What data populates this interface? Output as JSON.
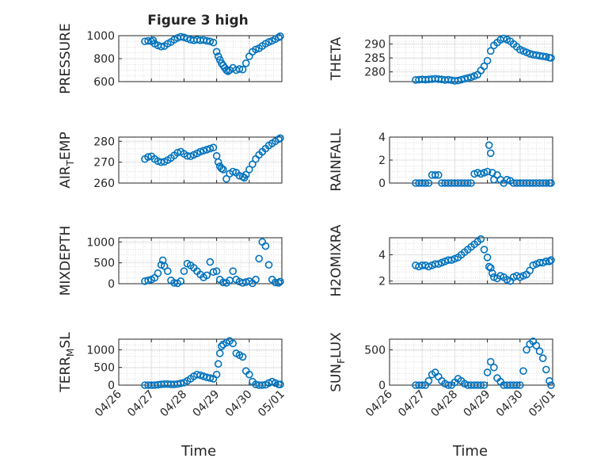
{
  "title": "Figure 3 high",
  "xlabel": "Time",
  "x_ticks": [
    "04/26",
    "04/27",
    "04/28",
    "04/29",
    "04/30",
    "05/01"
  ],
  "colors": {
    "marker": "#0072BD",
    "axes": "#262626",
    "grid_major": "#e0e0e0",
    "grid_minor": "#d0d0d0"
  },
  "chart_data": [
    {
      "type": "scatter",
      "id": "pressure",
      "ylabel": "PRESSURE",
      "ylim": [
        600,
        1000
      ],
      "yticks": [
        600,
        800,
        1000
      ],
      "grid": true,
      "x": [
        0.8,
        0.9,
        1.0,
        1.05,
        1.1,
        1.2,
        1.3,
        1.4,
        1.5,
        1.6,
        1.7,
        1.8,
        1.9,
        2.0,
        2.1,
        2.2,
        2.3,
        2.4,
        2.5,
        2.6,
        2.7,
        2.8,
        2.9,
        3.0,
        3.05,
        3.1,
        3.15,
        3.2,
        3.25,
        3.3,
        3.35,
        3.4,
        3.5,
        3.6,
        3.7,
        3.8,
        3.9,
        4.0,
        4.1,
        4.2,
        4.3,
        4.4,
        4.5,
        4.6,
        4.7,
        4.8,
        4.9,
        4.95
      ],
      "y": [
        950,
        955,
        950,
        960,
        930,
        915,
        905,
        910,
        930,
        945,
        965,
        980,
        990,
        985,
        975,
        965,
        960,
        965,
        960,
        962,
        955,
        950,
        940,
        860,
        820,
        790,
        760,
        740,
        720,
        700,
        690,
        700,
        720,
        700,
        710,
        705,
        760,
        820,
        860,
        880,
        890,
        910,
        930,
        945,
        955,
        970,
        985,
        995
      ]
    },
    {
      "type": "scatter",
      "id": "theta",
      "ylabel": "THETA",
      "ylim": [
        276.5,
        293
      ],
      "yticks": [
        280,
        285,
        290
      ],
      "grid": true,
      "x": [
        0.8,
        0.9,
        1.0,
        1.1,
        1.2,
        1.3,
        1.4,
        1.5,
        1.6,
        1.7,
        1.8,
        1.9,
        2.0,
        2.1,
        2.2,
        2.3,
        2.4,
        2.5,
        2.6,
        2.7,
        2.8,
        2.9,
        3.0,
        3.1,
        3.2,
        3.3,
        3.4,
        3.5,
        3.6,
        3.7,
        3.8,
        3.9,
        4.0,
        4.1,
        4.2,
        4.3,
        4.4,
        4.5,
        4.6,
        4.7,
        4.8,
        4.9,
        4.95
      ],
      "y": [
        277.1,
        277.2,
        277.3,
        277.2,
        277.3,
        277.4,
        277.5,
        277.4,
        277.3,
        277.1,
        277.2,
        277.0,
        276.8,
        276.9,
        277.2,
        277.5,
        277.8,
        278.1,
        278.5,
        279.0,
        280.5,
        282.0,
        284.0,
        287.5,
        289.5,
        290.5,
        291.5,
        292.0,
        291.6,
        291.0,
        290.0,
        289.0,
        288.0,
        287.5,
        287.0,
        286.5,
        286.2,
        286.0,
        285.8,
        285.6,
        285.4,
        285.1,
        285.0
      ]
    },
    {
      "type": "scatter",
      "id": "airtemp",
      "ylabel": "AIR_TEMP",
      "ylim": [
        260,
        282
      ],
      "yticks": [
        260,
        270,
        280
      ],
      "grid": true,
      "x": [
        0.8,
        0.9,
        1.0,
        1.1,
        1.2,
        1.3,
        1.4,
        1.5,
        1.6,
        1.7,
        1.8,
        1.9,
        2.0,
        2.1,
        2.2,
        2.3,
        2.4,
        2.5,
        2.6,
        2.7,
        2.8,
        2.9,
        3.0,
        3.05,
        3.1,
        3.15,
        3.2,
        3.3,
        3.4,
        3.5,
        3.6,
        3.7,
        3.8,
        3.85,
        3.9,
        4.0,
        4.1,
        4.2,
        4.3,
        4.4,
        4.5,
        4.6,
        4.7,
        4.8,
        4.9,
        4.95
      ],
      "y": [
        271.5,
        272.5,
        272.8,
        271.5,
        270.5,
        270.0,
        270.2,
        271.0,
        272.0,
        273.2,
        274.5,
        275.0,
        274.0,
        273.0,
        272.8,
        273.5,
        274.2,
        275.0,
        275.5,
        276.0,
        276.5,
        277.0,
        273.0,
        270.0,
        268.0,
        267.0,
        266.5,
        262.0,
        264.5,
        265.5,
        265.0,
        263.5,
        263.0,
        262.5,
        264.0,
        266.5,
        269.0,
        271.5,
        273.5,
        275.0,
        276.5,
        278.0,
        279.0,
        280.0,
        281.0,
        281.5
      ]
    },
    {
      "type": "scatter",
      "id": "rainfall",
      "ylabel": "RAINFALL",
      "ylim": [
        0,
        4
      ],
      "yticks": [
        0,
        2,
        4
      ],
      "grid": true,
      "x": [
        0.8,
        0.9,
        1.0,
        1.1,
        1.2,
        1.3,
        1.4,
        1.5,
        1.6,
        1.7,
        1.8,
        1.9,
        2.0,
        2.1,
        2.2,
        2.3,
        2.4,
        2.5,
        2.6,
        2.7,
        2.8,
        2.9,
        3.0,
        3.05,
        3.1,
        3.15,
        3.2,
        3.3,
        3.4,
        3.5,
        3.6,
        3.7,
        3.8,
        3.9,
        4.0,
        4.1,
        4.2,
        4.3,
        4.4,
        4.5,
        4.6,
        4.7,
        4.8,
        4.9,
        4.95
      ],
      "y": [
        0,
        0,
        0,
        0,
        0,
        0.7,
        0.7,
        0.7,
        0,
        0,
        0,
        0,
        0,
        0,
        0,
        0,
        0,
        0,
        0.8,
        0.9,
        0.8,
        0.9,
        1.0,
        3.3,
        2.6,
        0.9,
        0.3,
        0.7,
        0.3,
        0,
        0.3,
        0.2,
        0,
        0,
        0,
        0,
        0,
        0,
        0,
        0,
        0,
        0,
        0,
        0,
        0
      ]
    },
    {
      "type": "scatter",
      "id": "mixdepth",
      "ylabel": "MIXDEPTH",
      "ylim": [
        0,
        1100
      ],
      "yticks": [
        0,
        500,
        1000
      ],
      "grid": true,
      "x": [
        0.8,
        0.9,
        1.0,
        1.1,
        1.2,
        1.3,
        1.35,
        1.4,
        1.5,
        1.6,
        1.7,
        1.8,
        1.9,
        2.0,
        2.1,
        2.2,
        2.3,
        2.4,
        2.5,
        2.6,
        2.7,
        2.8,
        2.9,
        3.0,
        3.1,
        3.2,
        3.3,
        3.4,
        3.5,
        3.6,
        3.7,
        3.8,
        3.9,
        4.0,
        4.1,
        4.2,
        4.3,
        4.4,
        4.5,
        4.6,
        4.7,
        4.8,
        4.9,
        4.95
      ],
      "y": [
        60,
        80,
        100,
        140,
        250,
        450,
        560,
        420,
        300,
        80,
        20,
        10,
        60,
        300,
        480,
        440,
        380,
        300,
        220,
        150,
        200,
        520,
        280,
        300,
        100,
        30,
        20,
        80,
        300,
        100,
        50,
        20,
        40,
        60,
        10,
        100,
        600,
        1000,
        900,
        450,
        100,
        30,
        20,
        50
      ]
    },
    {
      "type": "scatter",
      "id": "h2omixra",
      "ylabel": "H2OMIXRA",
      "ylim": [
        1.8,
        5.3
      ],
      "yticks": [
        2,
        4
      ],
      "grid": true,
      "x": [
        0.8,
        0.9,
        1.0,
        1.1,
        1.2,
        1.3,
        1.4,
        1.5,
        1.6,
        1.7,
        1.8,
        1.9,
        2.0,
        2.1,
        2.2,
        2.3,
        2.4,
        2.5,
        2.6,
        2.7,
        2.8,
        2.9,
        3.0,
        3.05,
        3.1,
        3.15,
        3.2,
        3.3,
        3.4,
        3.5,
        3.6,
        3.7,
        3.8,
        3.9,
        4.0,
        4.1,
        4.2,
        4.3,
        4.4,
        4.5,
        4.6,
        4.7,
        4.8,
        4.9,
        4.95
      ],
      "y": [
        3.2,
        3.1,
        3.2,
        3.2,
        3.1,
        3.2,
        3.3,
        3.3,
        3.4,
        3.5,
        3.6,
        3.6,
        3.7,
        3.8,
        4.0,
        4.2,
        4.4,
        4.6,
        4.8,
        5.0,
        5.2,
        4.4,
        3.8,
        3.1,
        3.0,
        2.6,
        2.3,
        2.2,
        2.4,
        2.3,
        2.1,
        2.0,
        2.3,
        2.4,
        2.3,
        2.4,
        2.5,
        2.8,
        3.2,
        3.3,
        3.4,
        3.4,
        3.5,
        3.5,
        3.6
      ]
    },
    {
      "type": "scatter",
      "id": "terrmsl",
      "ylabel": "TERR_MSL",
      "ylim": [
        0,
        1300
      ],
      "yticks": [
        0,
        500,
        1000
      ],
      "grid": true,
      "x": [
        0.8,
        0.9,
        1.0,
        1.1,
        1.2,
        1.3,
        1.4,
        1.5,
        1.6,
        1.7,
        1.8,
        1.9,
        2.0,
        2.1,
        2.2,
        2.3,
        2.4,
        2.5,
        2.6,
        2.7,
        2.8,
        2.9,
        3.0,
        3.05,
        3.1,
        3.15,
        3.2,
        3.3,
        3.4,
        3.5,
        3.6,
        3.7,
        3.8,
        3.9,
        4.0,
        4.1,
        4.2,
        4.3,
        4.4,
        4.5,
        4.6,
        4.7,
        4.8,
        4.9,
        4.95
      ],
      "y": [
        0,
        0,
        0,
        0,
        10,
        20,
        30,
        30,
        20,
        20,
        30,
        50,
        70,
        120,
        180,
        250,
        300,
        280,
        250,
        220,
        200,
        180,
        300,
        600,
        900,
        1100,
        1150,
        1200,
        1250,
        1180,
        900,
        850,
        800,
        400,
        300,
        100,
        20,
        0,
        0,
        10,
        60,
        100,
        60,
        20,
        20
      ]
    },
    {
      "type": "scatter",
      "id": "sunflux",
      "ylabel": "SUN_FLUX",
      "ylim": [
        0,
        650
      ],
      "yticks": [
        0,
        500
      ],
      "grid": true,
      "x": [
        0.8,
        0.9,
        1.0,
        1.1,
        1.2,
        1.3,
        1.4,
        1.5,
        1.6,
        1.7,
        1.8,
        1.9,
        2.0,
        2.1,
        2.2,
        2.3,
        2.4,
        2.5,
        2.6,
        2.7,
        2.8,
        2.9,
        3.0,
        3.1,
        3.2,
        3.3,
        3.4,
        3.5,
        3.6,
        3.7,
        3.8,
        3.9,
        4.0,
        4.1,
        4.2,
        4.3,
        4.4,
        4.5,
        4.6,
        4.7,
        4.8,
        4.9,
        4.95
      ],
      "y": [
        0,
        0,
        0,
        0,
        60,
        150,
        180,
        120,
        60,
        20,
        0,
        0,
        40,
        90,
        60,
        20,
        0,
        0,
        0,
        0,
        0,
        0,
        180,
        330,
        250,
        100,
        50,
        0,
        0,
        0,
        0,
        0,
        0,
        200,
        500,
        580,
        620,
        560,
        480,
        380,
        220,
        60,
        0
      ]
    }
  ]
}
